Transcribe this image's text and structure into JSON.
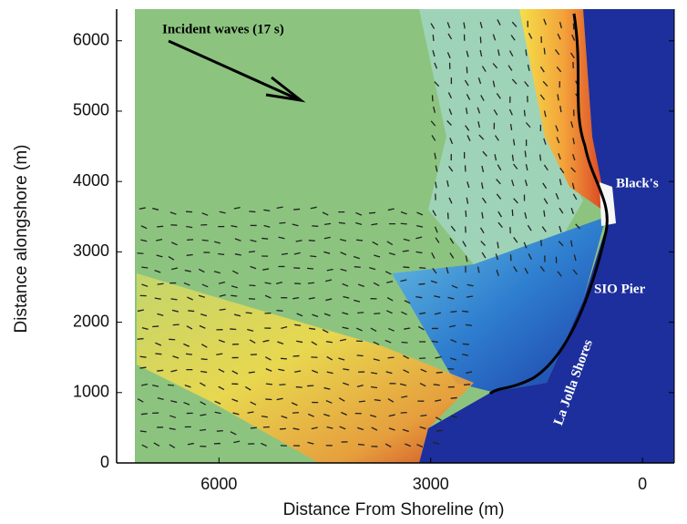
{
  "chart_data": {
    "type": "map",
    "xlabel": "Distance From Shoreline (m)",
    "ylabel": "Distance alongshore (m)",
    "xlim": [
      7450,
      -450
    ],
    "ylim": [
      0,
      6450
    ],
    "xticks": [
      6000,
      3000,
      0
    ],
    "yticks": [
      0,
      1000,
      2000,
      3000,
      4000,
      5000,
      6000
    ],
    "annotations": [
      "Incident waves (17 s)",
      "Black's",
      "SIO Pier",
      "La Jolla Shores"
    ]
  }
}
